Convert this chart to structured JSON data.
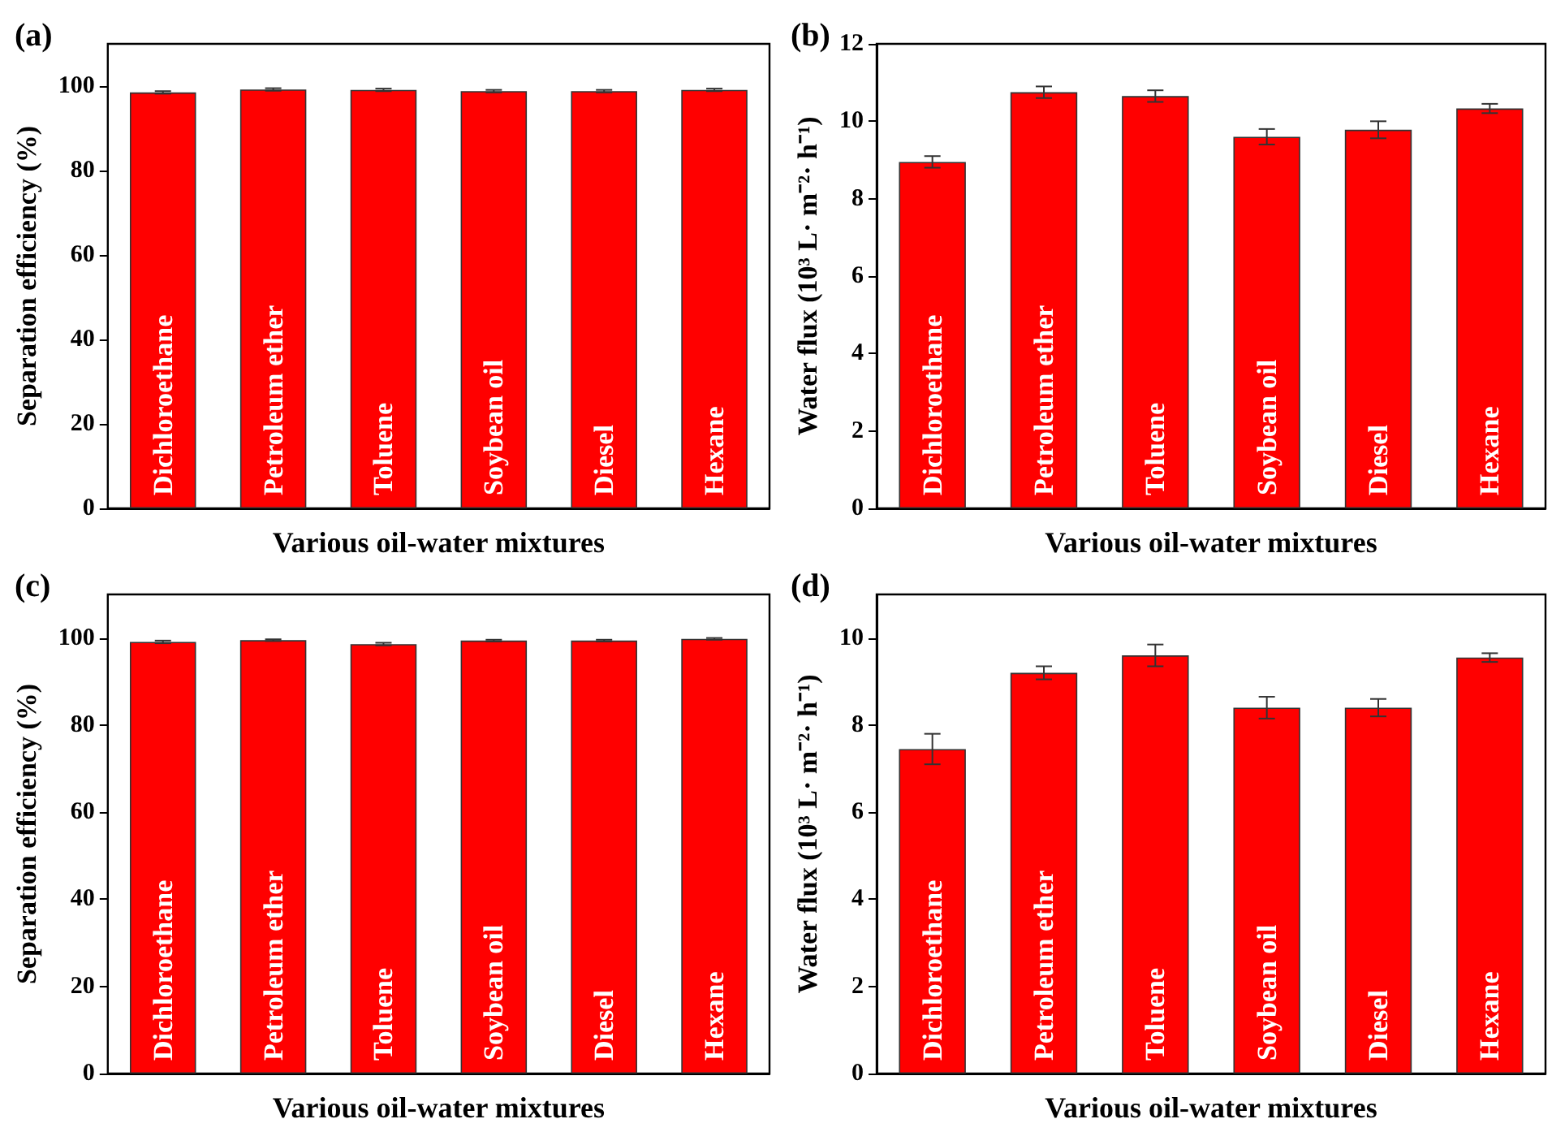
{
  "chart_data": [
    {
      "type": "bar",
      "title": "(a)",
      "xlabel": "Various oil-water mixtures",
      "ylabel": "Separation efficiency (%)",
      "categories": [
        "Dichloroethane",
        "Petroleum ether",
        "Toluene",
        "Soybean oil",
        "Diesel",
        "Hexane"
      ],
      "values": [
        98.5,
        99.2,
        99.1,
        98.8,
        98.8,
        99.1
      ],
      "errors": [
        0.3,
        0.3,
        0.3,
        0.3,
        0.3,
        0.3
      ],
      "color": "#ff0000",
      "ylim": [
        0,
        110
      ],
      "yticks": [
        0,
        20,
        40,
        60,
        80,
        100
      ],
      "grid": false
    },
    {
      "type": "bar",
      "title": "(b)",
      "xlabel": "Various oil-water mixtures",
      "ylabel": "Water flux (10³ L· m⁻²· h⁻¹)",
      "categories": [
        "Dichloroethane",
        "Petroleum ether",
        "Toluene",
        "Soybean oil",
        "Diesel",
        "Hexane"
      ],
      "values": [
        8.95,
        10.75,
        10.65,
        9.6,
        9.78,
        10.33
      ],
      "errors": [
        0.15,
        0.15,
        0.15,
        0.2,
        0.22,
        0.12
      ],
      "color": "#ff0000",
      "ylim": [
        0,
        12
      ],
      "yticks": [
        0,
        2,
        4,
        6,
        8,
        10,
        12
      ],
      "grid": false
    },
    {
      "type": "bar",
      "title": "(c)",
      "xlabel": "Various oil-water mixtures",
      "ylabel": "Separation efficiency (%)",
      "categories": [
        "Dichloroethane",
        "Petroleum ether",
        "Toluene",
        "Soybean oil",
        "Diesel",
        "Hexane"
      ],
      "values": [
        99.1,
        99.5,
        98.6,
        99.4,
        99.4,
        99.8
      ],
      "errors": [
        0.3,
        0.2,
        0.3,
        0.2,
        0.2,
        0.2
      ],
      "color": "#ff0000",
      "ylim": [
        0,
        110
      ],
      "yticks": [
        0,
        20,
        40,
        60,
        80,
        100
      ],
      "grid": false
    },
    {
      "type": "bar",
      "title": "(d)",
      "xlabel": "Various oil-water mixtures",
      "ylabel": "Water flux (10³ L· m⁻²· h⁻¹)",
      "categories": [
        "Dichloroethane",
        "Petroleum ether",
        "Toluene",
        "Soybean oil",
        "Diesel",
        "Hexane"
      ],
      "values": [
        7.45,
        9.2,
        9.6,
        8.4,
        8.4,
        9.55
      ],
      "errors": [
        0.35,
        0.15,
        0.25,
        0.25,
        0.2,
        0.1
      ],
      "color": "#ff0000",
      "ylim": [
        0,
        11
      ],
      "yticks": [
        0,
        2,
        4,
        6,
        8,
        10
      ],
      "grid": false
    }
  ]
}
